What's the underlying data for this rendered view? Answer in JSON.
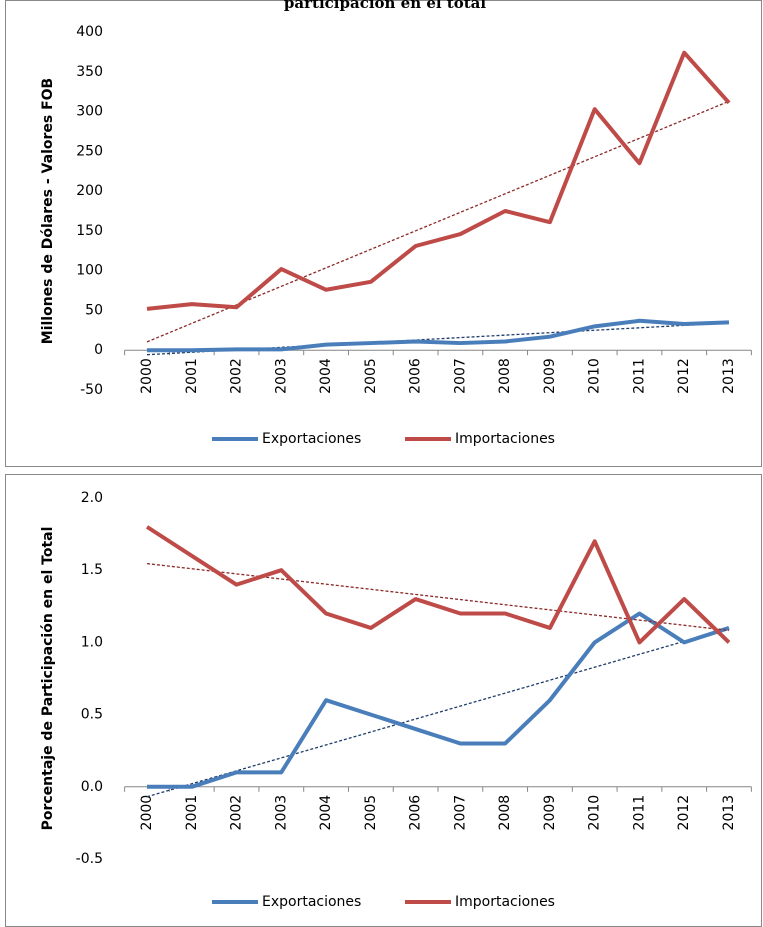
{
  "chart_data": [
    {
      "type": "line",
      "title": "participación en el total",
      "y_label": "Millones de Dólares - Valores FOB",
      "categories": [
        "2000",
        "2001",
        "2002",
        "2003",
        "2004",
        "2005",
        "2006",
        "2007",
        "2008",
        "2009",
        "2010",
        "2011",
        "2012",
        "2013"
      ],
      "series": [
        {
          "name": "Exportaciones",
          "color": "#4a7ebb",
          "trend_color": "#1f3d6b",
          "values": [
            0,
            0,
            1,
            1,
            7,
            9,
            11,
            9,
            11,
            17,
            30,
            37,
            33,
            35
          ]
        },
        {
          "name": "Importaciones",
          "color": "#be4b48",
          "trend_color": "#8b2a28",
          "values": [
            52,
            58,
            54,
            102,
            76,
            86,
            131,
            146,
            175,
            161,
            303,
            235,
            374,
            311
          ]
        }
      ],
      "ylim": [
        -50,
        400
      ],
      "yticks": [
        -50,
        0,
        50,
        100,
        150,
        200,
        250,
        300,
        350,
        400
      ],
      "trendline": true,
      "legend": "bottom",
      "grid": false
    },
    {
      "type": "line",
      "y_label": "Porcentaje de Participación  en el Total",
      "categories": [
        "2000",
        "2001",
        "2002",
        "2003",
        "2004",
        "2005",
        "2006",
        "2007",
        "2008",
        "2009",
        "2010",
        "2011",
        "2012",
        "2013"
      ],
      "series": [
        {
          "name": "Exportaciones",
          "color": "#4a7ebb",
          "trend_color": "#1f3d6b",
          "values": [
            0,
            0,
            0.1,
            0.1,
            0.6,
            0.5,
            0.4,
            0.3,
            0.3,
            0.6,
            1.0,
            1.2,
            1.0,
            1.1
          ]
        },
        {
          "name": "Importaciones",
          "color": "#be4b48",
          "trend_color": "#8b2a28",
          "values": [
            1.8,
            1.6,
            1.4,
            1.5,
            1.2,
            1.1,
            1.3,
            1.2,
            1.2,
            1.1,
            1.7,
            1.0,
            1.3,
            1.0
          ]
        }
      ],
      "ylim": [
        -0.5,
        2.0
      ],
      "yticks": [
        {
          "value": -0.5,
          "label": "-0.5"
        },
        {
          "value": 0,
          "label": "0.0"
        },
        {
          "value": 0.5,
          "label": "0.5"
        },
        {
          "value": 1,
          "label": "1.0"
        },
        {
          "value": 1.5,
          "label": "1.5"
        },
        {
          "value": 2,
          "label": "2.0"
        }
      ],
      "trendline": true,
      "legend": "bottom",
      "grid": false
    }
  ]
}
